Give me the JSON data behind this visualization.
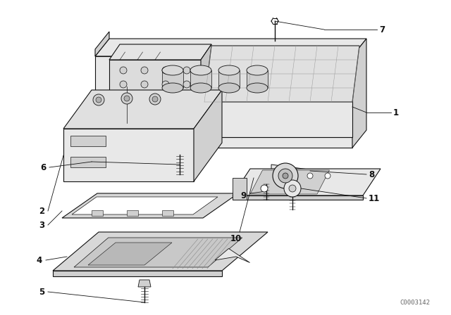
{
  "background_color": "#ffffff",
  "fig_width": 6.4,
  "fig_height": 4.48,
  "dpi": 100,
  "catalog_number": "C0003142",
  "line_color": "#111111",
  "text_color": "#111111",
  "label_fontsize": 8.5,
  "catalog_fontsize": 6.5
}
